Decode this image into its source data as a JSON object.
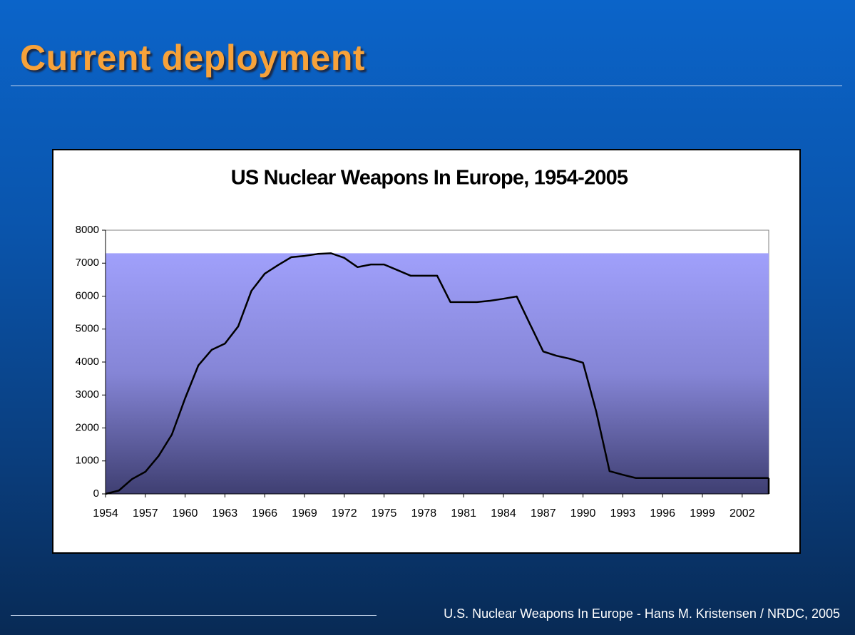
{
  "slide_title": "Current deployment",
  "footer": "U.S. Nuclear Weapons In Europe - Hans M. Kristensen / NRDC, 2005",
  "chart_data": {
    "type": "line",
    "title": "US Nuclear Weapons In Europe, 1954-2005",
    "categories": [
      "1954",
      null,
      null,
      "1957",
      null,
      null,
      "1960",
      null,
      null,
      "1963",
      null,
      null,
      "1966",
      null,
      null,
      "1969",
      null,
      null,
      "1972",
      null,
      null,
      "1975",
      null,
      null,
      "1978",
      null,
      null,
      "1981",
      null,
      null,
      "1984",
      null,
      null,
      "1987",
      null,
      null,
      "1990",
      null,
      null,
      "1993",
      null,
      null,
      "1996",
      null,
      null,
      "1999",
      null,
      null,
      "2002",
      null,
      null
    ],
    "values": [
      0,
      100,
      450,
      670,
      1150,
      1800,
      2900,
      3900,
      4370,
      4560,
      5080,
      6160,
      6680,
      6940,
      7180,
      7220,
      7280,
      7300,
      7160,
      6880,
      6960,
      6960,
      6790,
      6620,
      6620,
      6620,
      5820,
      5820,
      5820,
      5860,
      5920,
      5990,
      5150,
      4320,
      4190,
      4100,
      3980,
      2490,
      690,
      580,
      480,
      480,
      480,
      480,
      480,
      480,
      480,
      480,
      480,
      480,
      480
    ],
    "color": "#000000",
    "ylim": [
      0,
      8000
    ],
    "yticks": [
      0,
      1000,
      2000,
      3000,
      4000,
      5000,
      6000,
      7000,
      8000
    ]
  }
}
